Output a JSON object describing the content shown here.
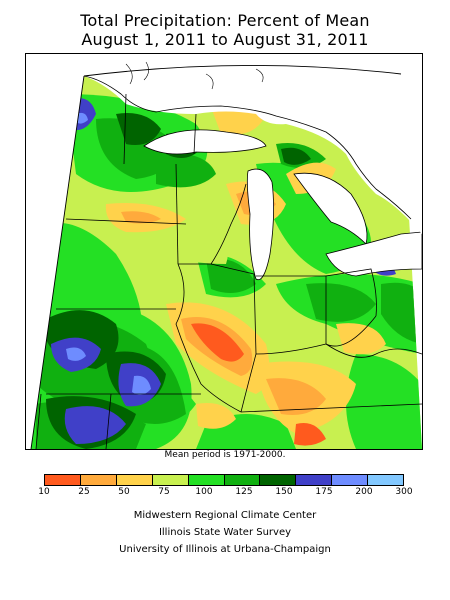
{
  "title": {
    "line1": "Total Precipitation: Percent of Mean",
    "line2": "August 1, 2011 to August 31, 2011"
  },
  "map": {
    "region": "Midwest United States",
    "variable": "Percent of mean precipitation"
  },
  "note": "Mean period is 1971-2000.",
  "legend": {
    "breaks": [
      "10",
      "25",
      "50",
      "75",
      "100",
      "125",
      "150",
      "175",
      "200",
      "300"
    ],
    "colors": [
      "#ff5a1e",
      "#ffaa3c",
      "#ffd24b",
      "#c8f050",
      "#24e024",
      "#10b010",
      "#006400",
      "#4040c8",
      "#6e8cff",
      "#82c8ff"
    ]
  },
  "credits": {
    "line1": "Midwestern Regional Climate Center",
    "line2": "Illinois State Water Survey",
    "line3": "University of Illinois at Urbana-Champaign"
  }
}
